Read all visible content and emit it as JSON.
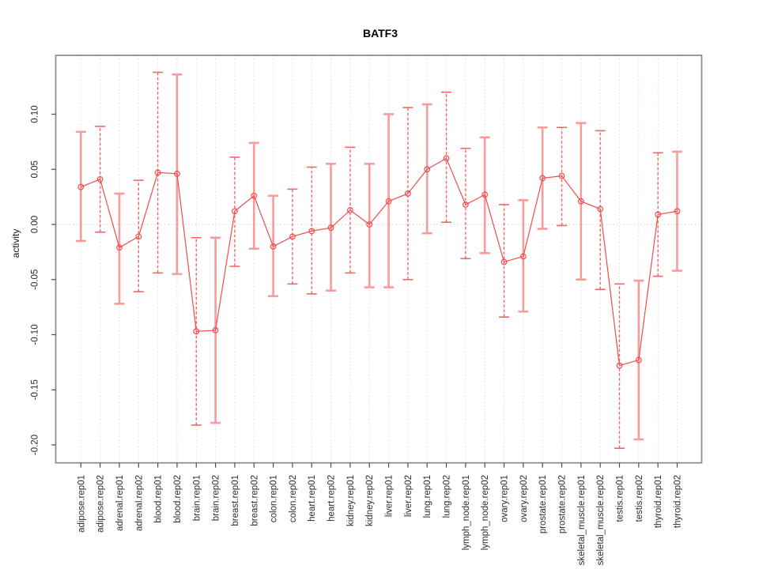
{
  "chart_data": {
    "type": "line",
    "title": "BATF3",
    "xlabel": "",
    "ylabel": "activity",
    "legend": "none",
    "grid": "vertical-dotted-per-category",
    "zero_reference_line": true,
    "marker": "open-circle",
    "error_bars": true,
    "ylim": [
      -0.216,
      0.153
    ],
    "ytick_values": [
      0.1,
      0.05,
      0.0,
      -0.05,
      -0.1,
      -0.15,
      -0.2
    ],
    "ytick_labels": [
      "0.10",
      "0.05",
      "0.00",
      "-0.05",
      "-0.10",
      "-0.15",
      "-0.20"
    ],
    "categories": [
      "adipose.rep01",
      "adipose.rep02",
      "adrenal.rep01",
      "adrenal.rep02",
      "blood.rep01",
      "blood.rep02",
      "brain.rep01",
      "brain.rep02",
      "breast.rep01",
      "breast.rep02",
      "colon.rep01",
      "colon.rep02",
      "heart.rep01",
      "heart.rep02",
      "kidney.rep01",
      "kidney.rep02",
      "liver.rep01",
      "liver.rep02",
      "lung.rep01",
      "lung.rep02",
      "lymph_node.rep01",
      "lymph_node.rep02",
      "ovary.rep01",
      "ovary.rep02",
      "prostate.rep01",
      "prostate.rep02",
      "skeletal_muscle.rep01",
      "skeletal_muscle.rep02",
      "testis.rep01",
      "testis.rep02",
      "thyroid.rep01",
      "thyroid.rep02"
    ],
    "series": [
      {
        "name": "activity",
        "values": [
          0.034,
          0.041,
          -0.021,
          -0.011,
          0.047,
          0.046,
          -0.097,
          -0.096,
          0.012,
          0.026,
          -0.02,
          -0.011,
          -0.006,
          -0.003,
          0.013,
          0.0,
          0.021,
          0.028,
          0.05,
          0.06,
          0.018,
          0.027,
          -0.034,
          -0.029,
          0.042,
          0.044,
          0.021,
          0.014,
          -0.128,
          -0.123,
          0.009,
          0.012
        ],
        "ci_low": [
          -0.015,
          -0.007,
          -0.072,
          -0.061,
          -0.044,
          -0.045,
          -0.182,
          -0.18,
          -0.038,
          -0.022,
          -0.065,
          -0.054,
          -0.063,
          -0.06,
          -0.044,
          -0.057,
          -0.057,
          -0.05,
          -0.008,
          0.002,
          -0.031,
          -0.026,
          -0.084,
          -0.079,
          -0.004,
          -0.001,
          -0.05,
          -0.059,
          -0.203,
          -0.195,
          -0.047,
          -0.042
        ],
        "ci_high": [
          0.084,
          0.089,
          0.028,
          0.04,
          0.138,
          0.136,
          -0.012,
          -0.012,
          0.061,
          0.074,
          0.026,
          0.032,
          0.052,
          0.055,
          0.07,
          0.055,
          0.1,
          0.106,
          0.109,
          0.12,
          0.069,
          0.079,
          0.018,
          0.022,
          0.088,
          0.088,
          0.092,
          0.085,
          -0.054,
          -0.051,
          0.065,
          0.066
        ],
        "bar_styles": [
          "solid",
          "dashed",
          "solid",
          "dashed",
          "dashed",
          "solid",
          "dashed",
          "solid",
          "dashed",
          "solid",
          "solid",
          "dashed",
          "dashed",
          "solid",
          "dashed",
          "solid",
          "solid",
          "dashed",
          "solid",
          "dashed",
          "dashed",
          "solid",
          "dashed",
          "solid",
          "solid",
          "dashed",
          "solid",
          "dashed",
          "dashed",
          "solid",
          "dashed",
          "solid"
        ]
      }
    ],
    "colors": {
      "series_line": "#f04c4c",
      "marker": "#f04c4c",
      "bar_solid": "#f89b9b",
      "bar_dashed": "#f26666",
      "gridline": "#dcdcdc",
      "zero_line": "#f6c3c3",
      "plot_border": "#8f8f8f",
      "tick": "#4d4d4d",
      "text": "#2b2b2b",
      "title": "#000000"
    }
  }
}
